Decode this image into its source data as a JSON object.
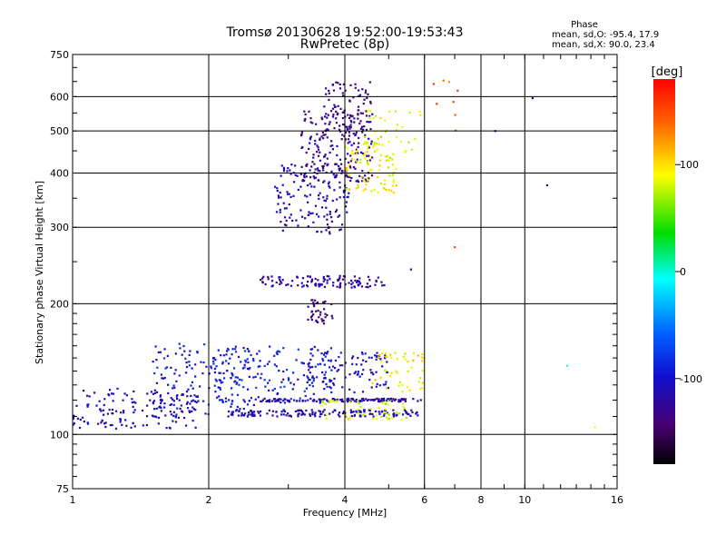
{
  "chart_data": {
    "type": "scatter",
    "title": "Tromsø 20130628 19:52:00-19:53:43",
    "subtitle": "RwPretec (8p)",
    "xlabel": "Frequency [MHz]",
    "ylabel": "Stationary phase Virtual Height [km]",
    "x_scale": "log",
    "y_scale": "log",
    "xlim": [
      1,
      16
    ],
    "ylim": [
      75,
      750
    ],
    "x_ticks": [
      1,
      2,
      4,
      6,
      8,
      10,
      16
    ],
    "x_tick_labels": [
      "1",
      "2",
      "4",
      "6",
      "8",
      "10",
      "16"
    ],
    "y_ticks": [
      75,
      100,
      200,
      300,
      400,
      500,
      600,
      750
    ],
    "y_tick_labels": [
      "75",
      "100",
      "200",
      "300",
      "400",
      "500",
      "600",
      "750"
    ],
    "grid": true,
    "stats": {
      "title": "Phase",
      "line_o": "mean, sd,O: -95.4, 17.9",
      "line_x": "mean, sd,X:  90.0, 23.4"
    },
    "colorbar": {
      "label": "[deg]",
      "range": [
        -180,
        180
      ],
      "ticks": [
        100,
        0,
        -100
      ],
      "tick_labels": [
        "100",
        "0",
        "-100"
      ]
    },
    "clusters": [
      {
        "x0": 1.0,
        "x1": 1.9,
        "y0": 103,
        "y1": 128,
        "phase": -110,
        "n": 150
      },
      {
        "x0": 1.5,
        "x1": 2.6,
        "y0": 110,
        "y1": 162,
        "phase": -95,
        "n": 150
      },
      {
        "x0": 2.0,
        "x1": 3.8,
        "y0": 118,
        "y1": 160,
        "phase": -90,
        "n": 150
      },
      {
        "x0": 2.2,
        "x1": 5.8,
        "y0": 110,
        "y1": 114,
        "phase": -115,
        "n": 150
      },
      {
        "x0": 2.6,
        "x1": 5.9,
        "y0": 119,
        "y1": 121,
        "phase": -120,
        "n": 130
      },
      {
        "x0": 3.5,
        "x1": 5.5,
        "y0": 108,
        "y1": 120,
        "phase": 80,
        "n": 50
      },
      {
        "x0": 3.2,
        "x1": 5.0,
        "y0": 125,
        "y1": 155,
        "phase": -105,
        "n": 100
      },
      {
        "x0": 4.6,
        "x1": 6.0,
        "y0": 125,
        "y1": 155,
        "phase": 95,
        "n": 45
      },
      {
        "x0": 2.6,
        "x1": 4.9,
        "y0": 218,
        "y1": 232,
        "phase": -120,
        "n": 110
      },
      {
        "x0": 3.3,
        "x1": 3.8,
        "y0": 180,
        "y1": 205,
        "phase": -140,
        "n": 40
      },
      {
        "x0": 2.8,
        "x1": 4.1,
        "y0": 290,
        "y1": 420,
        "phase": -115,
        "n": 140
      },
      {
        "x0": 3.2,
        "x1": 4.6,
        "y0": 380,
        "y1": 560,
        "phase": -125,
        "n": 200
      },
      {
        "x0": 3.6,
        "x1": 4.6,
        "y0": 500,
        "y1": 650,
        "phase": -130,
        "n": 80
      },
      {
        "x0": 4.0,
        "x1": 5.2,
        "y0": 360,
        "y1": 480,
        "phase": 90,
        "n": 90
      },
      {
        "x0": 4.4,
        "x1": 5.9,
        "y0": 440,
        "y1": 560,
        "phase": 85,
        "n": 35
      },
      {
        "x0": 6.2,
        "x1": 7.2,
        "y0": 500,
        "y1": 660,
        "phase": 140,
        "n": 8
      }
    ],
    "points": [
      {
        "x": 8.6,
        "y": 500,
        "phase": -110
      },
      {
        "x": 10.4,
        "y": 595,
        "phase": -130
      },
      {
        "x": 11.2,
        "y": 375,
        "phase": -120
      },
      {
        "x": 12.4,
        "y": 144,
        "phase": -10
      },
      {
        "x": 14.3,
        "y": 104,
        "phase": 90
      },
      {
        "x": 5.6,
        "y": 240,
        "phase": -120
      },
      {
        "x": 7.0,
        "y": 270,
        "phase": 150
      }
    ]
  }
}
